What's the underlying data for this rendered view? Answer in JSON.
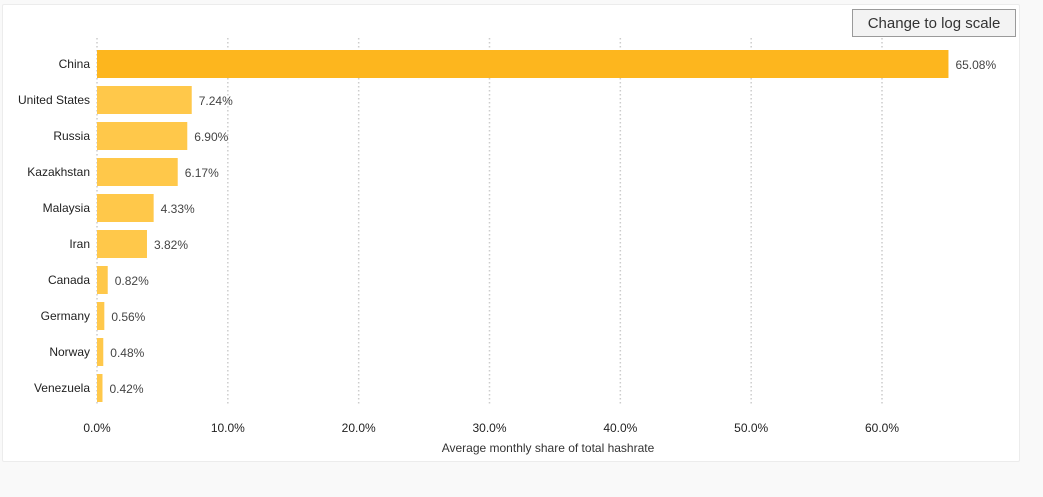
{
  "controls": {
    "log_button_label": "Change to log scale"
  },
  "chart_data": {
    "type": "bar",
    "orientation": "horizontal",
    "categories": [
      "China",
      "United States",
      "Russia",
      "Kazakhstan",
      "Malaysia",
      "Iran",
      "Canada",
      "Germany",
      "Norway",
      "Venezuela"
    ],
    "values": [
      65.08,
      7.24,
      6.9,
      6.17,
      4.33,
      3.82,
      0.82,
      0.56,
      0.48,
      0.42
    ],
    "value_labels": [
      "65.08%",
      "7.24%",
      "6.90%",
      "6.17%",
      "4.33%",
      "3.82%",
      "0.82%",
      "0.56%",
      "0.48%",
      "0.42%"
    ],
    "xlabel": "Average monthly share of total hashrate",
    "xlim": [
      0,
      70
    ],
    "xticks": [
      0,
      10,
      20,
      30,
      40,
      50,
      60
    ],
    "xtick_labels": [
      "0.0%",
      "10.0%",
      "20.0%",
      "30.0%",
      "40.0%",
      "50.0%",
      "60.0%"
    ],
    "grid": true,
    "colors": {
      "highlight": "#fdb61e",
      "bar": "#ffc84a",
      "grid": "#cccccc"
    }
  }
}
